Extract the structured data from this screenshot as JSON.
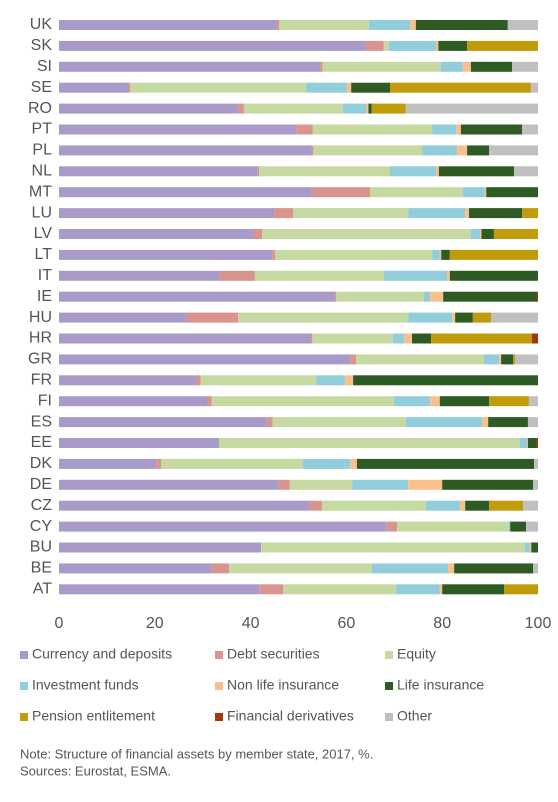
{
  "chart_data": {
    "type": "stacked-barh",
    "categories": [
      "UK",
      "SK",
      "SI",
      "SE",
      "RO",
      "PT",
      "PL",
      "NL",
      "MT",
      "LU",
      "LV",
      "LT",
      "IT",
      "IE",
      "HU",
      "HR",
      "GR",
      "FR",
      "FI",
      "ES",
      "EE",
      "DK",
      "DE",
      "CZ",
      "CY",
      "BU",
      "BE",
      "AT"
    ],
    "series": [
      {
        "name": "Currency and deposits",
        "color": "#a99bc9",
        "values": [
          45.5,
          64,
          54.5,
          14.4,
          37.4,
          49.5,
          52.8,
          41.5,
          52.8,
          44.9,
          40.7,
          44.5,
          33.6,
          57.6,
          26.5,
          52.6,
          60.8,
          28.6,
          30.9,
          43.4,
          33.4,
          20.3,
          45.9,
          52.2,
          68.3,
          42.2,
          31.9,
          41.8
        ]
      },
      {
        "name": "Debt securities",
        "color": "#d99490",
        "values": [
          0.5,
          3.8,
          0.5,
          0.5,
          1.2,
          3.5,
          0.3,
          0.3,
          12.2,
          4,
          1.7,
          0.6,
          7.3,
          0.3,
          10.9,
          0.3,
          1.2,
          1,
          1,
          1.2,
          0,
          1,
          2.3,
          2.7,
          2.3,
          0,
          3.6,
          5
        ]
      },
      {
        "name": "Equity",
        "color": "#c5d9a0",
        "values": [
          18.7,
          1.1,
          24.7,
          36.7,
          20.7,
          24.9,
          22.7,
          27.3,
          19.3,
          24,
          43.6,
          32.8,
          26.9,
          18.3,
          35.5,
          16.8,
          26.7,
          24.1,
          38,
          27.8,
          62.8,
          29.6,
          13,
          21.7,
          23.3,
          55.1,
          29.8,
          23.6
        ]
      },
      {
        "name": "Investment funds",
        "color": "#92cddc",
        "values": [
          8.6,
          9.8,
          4.6,
          8.5,
          4.8,
          5,
          7.3,
          9.6,
          4.6,
          11.9,
          1.9,
          1.6,
          13.2,
          1.3,
          9.2,
          2.3,
          3.2,
          6,
          7.6,
          15.9,
          1.5,
          9.9,
          11.7,
          7.1,
          0.3,
          1,
          15.9,
          9.1
        ]
      },
      {
        "name": "Non life insurance",
        "color": "#f9c08c",
        "values": [
          1.2,
          0.5,
          1.7,
          0.9,
          0.5,
          1,
          2.1,
          0.6,
          0.3,
          0.8,
          0.3,
          0.3,
          0.6,
          2.7,
          0.6,
          1.7,
          0.4,
          1.7,
          2,
          1.3,
          0.2,
          1.4,
          7.1,
          1.1,
          0,
          0.3,
          1.3,
          0.5
        ]
      },
      {
        "name": "Life insurance",
        "color": "#2e5a24",
        "values": [
          19.2,
          6,
          8.6,
          8.1,
          0.7,
          12.8,
          4.6,
          15.7,
          10.8,
          11.1,
          2.6,
          1.8,
          18.4,
          19.6,
          3.7,
          4,
          2.5,
          38.6,
          10.3,
          8.3,
          1.8,
          37,
          19,
          5,
          3.3,
          1.4,
          16.5,
          12.9
        ]
      },
      {
        "name": "Pension entlitement",
        "color": "#c09b0a",
        "values": [
          0,
          14.8,
          0,
          29.4,
          7.1,
          0,
          0,
          0,
          0,
          3.3,
          9.2,
          18.4,
          0,
          0,
          3.8,
          21,
          0.4,
          0,
          8.3,
          0,
          0,
          0,
          0,
          7.1,
          0,
          0,
          0,
          7.1
        ]
      },
      {
        "name": "Financial derivatives",
        "color": "#9e3a0c",
        "values": [
          0,
          0,
          0,
          0,
          0,
          0,
          0,
          0,
          0,
          0,
          0,
          0,
          0,
          0.2,
          0,
          1.3,
          0,
          0,
          0,
          0,
          0.3,
          0,
          0,
          0,
          0,
          0,
          0,
          0
        ]
      },
      {
        "name": "Other",
        "color": "#c0c0c0",
        "values": [
          6.3,
          0,
          5.4,
          1.5,
          27.6,
          3.3,
          10.2,
          5,
          0,
          0,
          0,
          0,
          0,
          0,
          9.8,
          0,
          4.8,
          0,
          1.9,
          2.1,
          0,
          0.8,
          1,
          3.1,
          2.5,
          0,
          1,
          0
        ]
      }
    ],
    "xlim": [
      0,
      100
    ],
    "xticks": [
      0,
      20,
      40,
      60,
      80,
      100
    ],
    "note": "Note: Structure of financial assets by member state, 2017, %.",
    "source": "Sources: Eurostat, ESMA."
  }
}
